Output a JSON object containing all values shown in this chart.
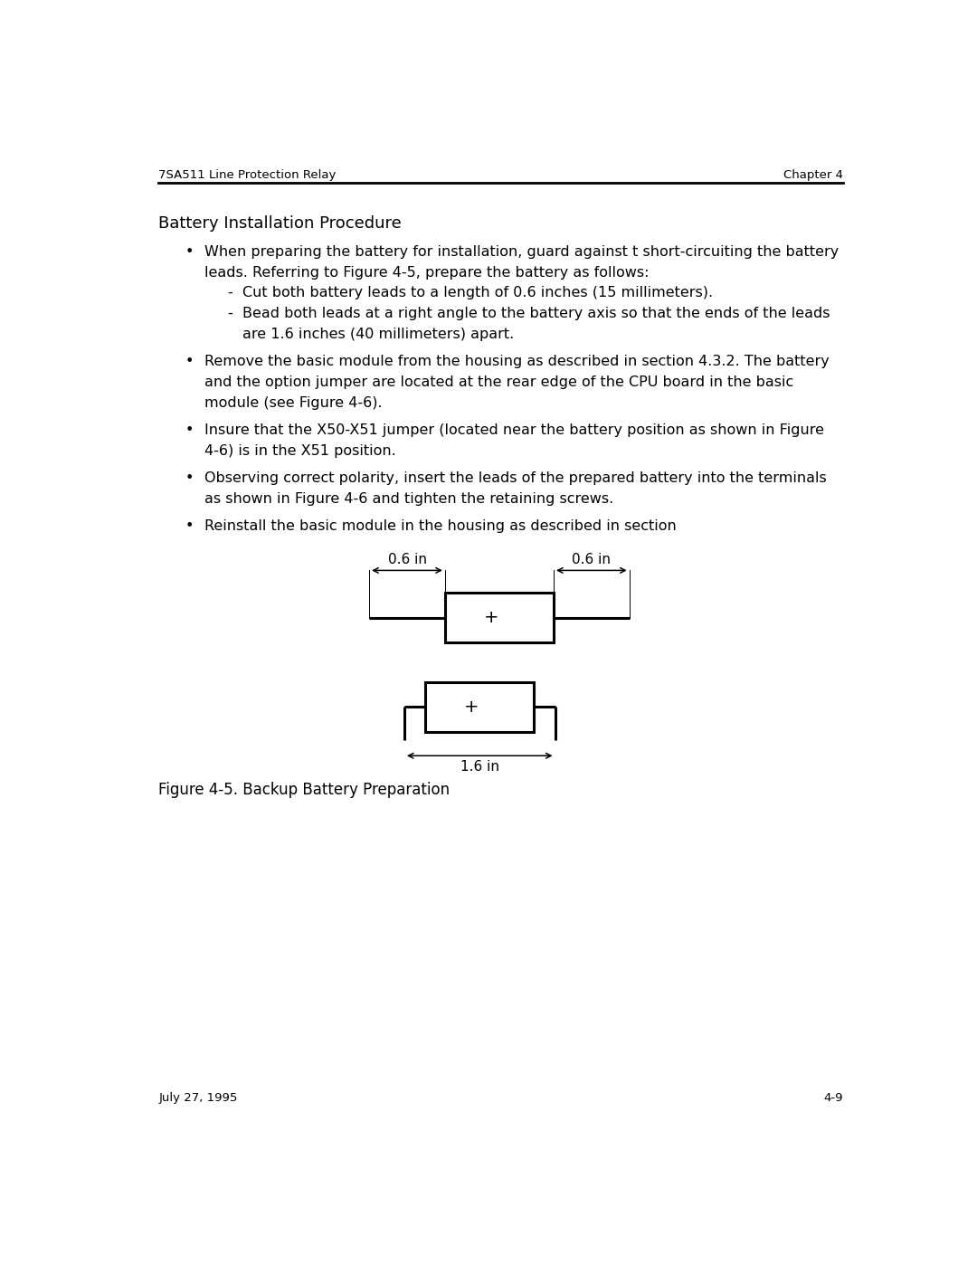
{
  "header_left": "7SA511 Line Protection Relay",
  "header_right": "Chapter 4",
  "footer_left": "July 27, 1995",
  "footer_right": "4-9",
  "title": "Battery Installation Procedure",
  "bullet1_line1": "When preparing the battery for installation, guard against t short-circuiting the battery",
  "bullet1_line2": "leads. Referring to Figure 4-5, prepare the battery as follows:",
  "sub1_dash": "-",
  "sub1_text": "Cut both battery leads to a length of 0.6 inches (15 millimeters).",
  "sub2_dash": "-",
  "sub2_line1": "Bead both leads at a right angle to the battery axis so that the ends of the leads",
  "sub2_line2": "are 1.6 inches (40 millimeters) apart.",
  "bullet2_line1": "Remove the basic module from the housing as described in section 4.3.2. The battery",
  "bullet2_line2": "and the option jumper are located at the rear edge of the CPU board in the basic",
  "bullet2_line3": "module (see Figure 4-6).",
  "bullet3_line1": "Insure that the X50-X51 jumper (located near the battery position as shown in Figure",
  "bullet3_line2": "4-6) is in the X51 position.",
  "bullet4_line1": "Observing correct polarity, insert the leads of the prepared battery into the terminals",
  "bullet4_line2": "as shown in Figure 4-6 and tighten the retaining screws.",
  "bullet5_line1": "Reinstall the basic module in the housing as described in section",
  "figure_caption": "Figure 4-5. Backup Battery Preparation",
  "dim_06_left": "0.6 in",
  "dim_06_right": "0.6 in",
  "dim_16": "1.6 in",
  "plus": "+",
  "bg_color": "#ffffff",
  "text_color": "#000000",
  "font_size_header": 9.5,
  "font_size_body": 11.5,
  "font_size_title": 13,
  "font_size_caption": 12,
  "font_size_diagram": 14,
  "font_size_dim": 11
}
